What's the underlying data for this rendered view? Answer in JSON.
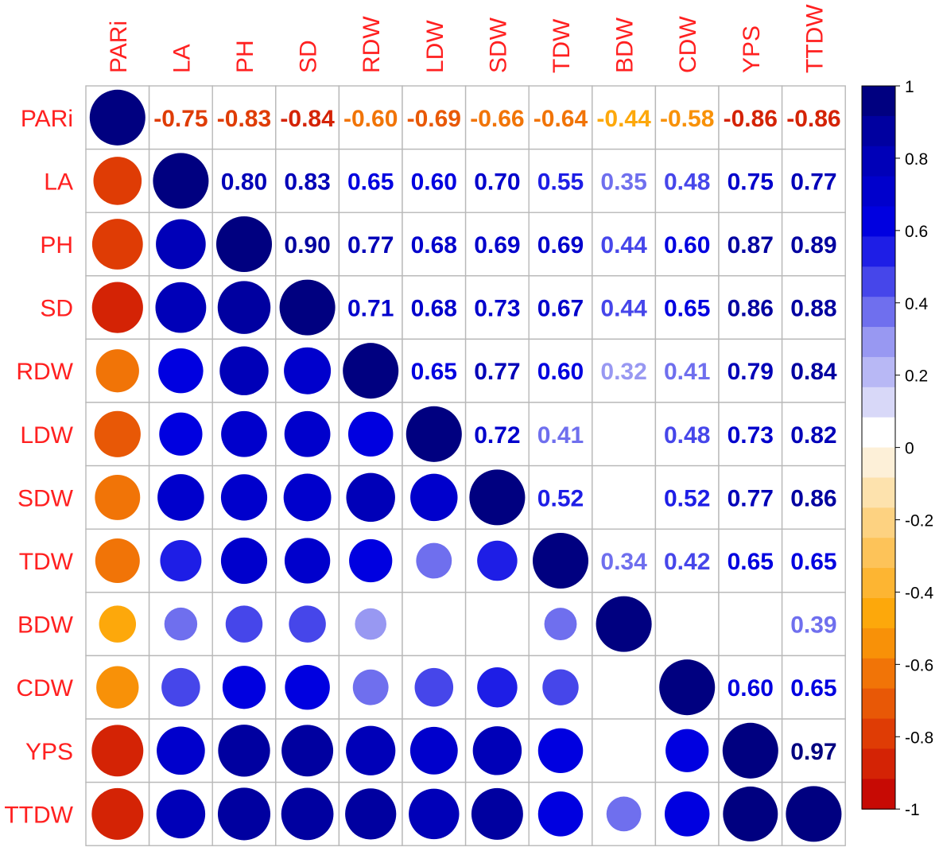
{
  "chart_data": {
    "type": "heatmap",
    "variables": [
      "PARi",
      "LA",
      "PH",
      "SD",
      "RDW",
      "LDW",
      "SDW",
      "TDW",
      "BDW",
      "CDW",
      "YPS",
      "TTDW"
    ],
    "correlations": [
      [
        1.0,
        -0.75,
        -0.83,
        -0.84,
        -0.6,
        -0.69,
        -0.66,
        -0.64,
        -0.44,
        -0.58,
        -0.86,
        -0.86
      ],
      [
        -0.75,
        1.0,
        0.8,
        0.83,
        0.65,
        0.6,
        0.7,
        0.55,
        0.35,
        0.48,
        0.75,
        0.77
      ],
      [
        -0.83,
        0.8,
        1.0,
        0.9,
        0.77,
        0.68,
        0.69,
        0.69,
        0.44,
        0.6,
        0.87,
        0.89
      ],
      [
        -0.84,
        0.83,
        0.9,
        1.0,
        0.71,
        0.68,
        0.73,
        0.67,
        0.44,
        0.65,
        0.86,
        0.88
      ],
      [
        -0.6,
        0.65,
        0.77,
        0.71,
        1.0,
        0.65,
        0.77,
        0.6,
        0.32,
        0.41,
        0.79,
        0.84
      ],
      [
        -0.69,
        0.6,
        0.68,
        0.68,
        0.65,
        1.0,
        0.72,
        0.41,
        null,
        0.48,
        0.73,
        0.82
      ],
      [
        -0.66,
        0.7,
        0.69,
        0.73,
        0.77,
        0.72,
        1.0,
        0.52,
        null,
        0.52,
        0.77,
        0.86
      ],
      [
        -0.64,
        0.55,
        0.69,
        0.67,
        0.6,
        0.41,
        0.52,
        1.0,
        0.34,
        0.42,
        0.65,
        0.65
      ],
      [
        -0.44,
        0.35,
        0.44,
        0.44,
        0.32,
        null,
        null,
        0.34,
        1.0,
        null,
        null,
        0.39
      ],
      [
        -0.58,
        0.48,
        0.6,
        0.65,
        0.41,
        0.48,
        0.52,
        0.42,
        null,
        1.0,
        0.6,
        0.65
      ],
      [
        -0.86,
        0.75,
        0.87,
        0.86,
        0.79,
        0.73,
        0.77,
        0.65,
        null,
        0.6,
        1.0,
        0.97
      ],
      [
        -0.86,
        0.77,
        0.89,
        0.88,
        0.84,
        0.82,
        0.86,
        0.65,
        0.39,
        0.65,
        0.97,
        1.0
      ]
    ],
    "lower_triangle": "circle",
    "upper_triangle": "number",
    "label_color": "#ff2020",
    "legend": {
      "position": "right",
      "range": [
        -1,
        1
      ],
      "ticks": [
        "1",
        "0.8",
        "0.6",
        "0.4",
        "0.2",
        "0",
        "-0.2",
        "-0.4",
        "-0.6",
        "-0.8",
        "-1"
      ],
      "colors": [
        "#c70a04",
        "#d42305",
        "#df3c05",
        "#e85806",
        "#f17407",
        "#f89108",
        "#fda80b",
        "#fdb532",
        "#fdc359",
        "#fdd281",
        "#fde2ad",
        "#fdf0d8",
        "#ffffff",
        "#d8d8f8",
        "#b8b8f5",
        "#9898f2",
        "#6f6fee",
        "#4646ea",
        "#1e1ee6",
        "#0000e0",
        "#0000cc",
        "#0000b8",
        "#0000a0",
        "#000080"
      ]
    }
  }
}
